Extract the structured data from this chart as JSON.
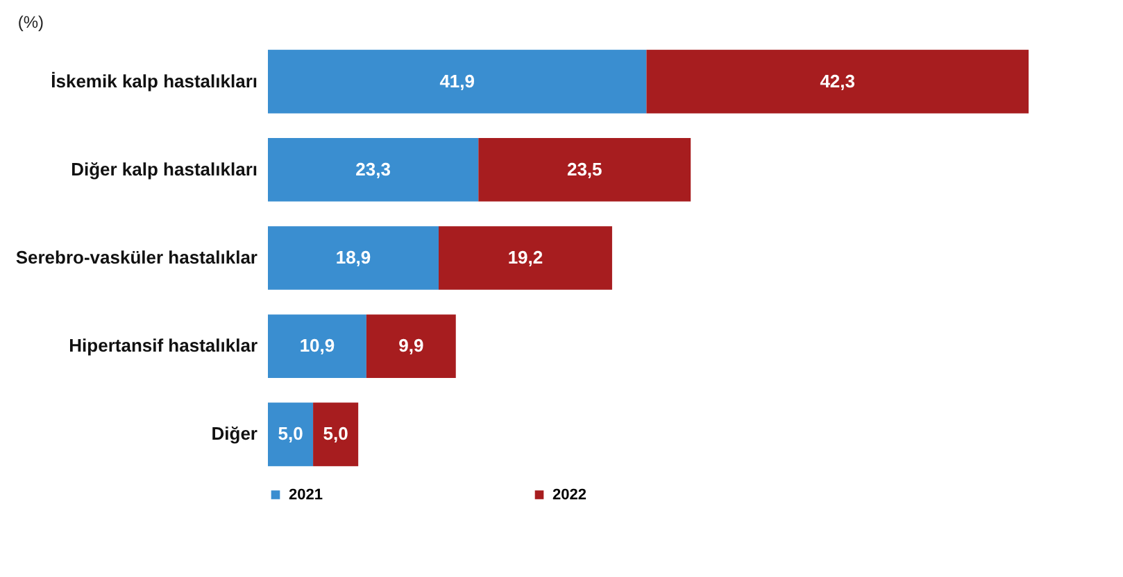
{
  "chart_data": {
    "type": "bar",
    "orientation": "horizontal",
    "stacked": true,
    "categories": [
      "İskemik kalp hastalıkları",
      "Diğer kalp hastalıkları",
      "Serebro-vasküler hastalıklar",
      "Hipertansif hastalıklar",
      "Diğer"
    ],
    "series": [
      {
        "name": "2021",
        "color": "#3a8ed0",
        "values": [
          41.9,
          23.3,
          18.9,
          10.9,
          5.0
        ],
        "value_labels": [
          "41,9",
          "23,3",
          "18,9",
          "10,9",
          "5,0"
        ]
      },
      {
        "name": "2022",
        "color": "#a71d1f",
        "values": [
          42.3,
          23.5,
          19.2,
          9.9,
          5.0
        ],
        "value_labels": [
          "42,3",
          "23,5",
          "19,2",
          "9,9",
          "5,0"
        ]
      }
    ],
    "annotations": [
      "(%)"
    ],
    "legend": "bottom",
    "tick_labels": "y"
  }
}
